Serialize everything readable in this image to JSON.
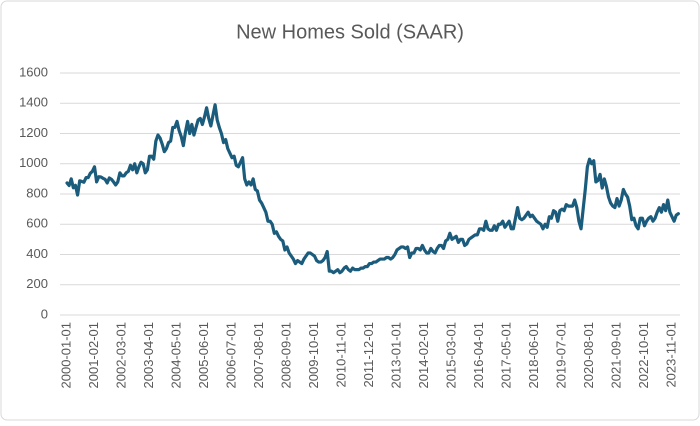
{
  "chart_data": {
    "type": "line",
    "title": "New Homes Sold (SAAR)",
    "color": "#1b5c7c",
    "grid": true,
    "ylim": [
      0,
      1600
    ],
    "yticks": [
      0,
      200,
      400,
      600,
      800,
      1000,
      1200,
      1400,
      1600
    ],
    "categories": [
      "2000-01-01",
      null,
      null,
      null,
      null,
      null,
      null,
      null,
      null,
      null,
      null,
      null,
      null,
      "2001-02-01",
      null,
      null,
      null,
      null,
      null,
      null,
      null,
      null,
      null,
      null,
      null,
      null,
      "2002-03-01",
      null,
      null,
      null,
      null,
      null,
      null,
      null,
      null,
      null,
      null,
      null,
      null,
      "2003-04-01",
      null,
      null,
      null,
      null,
      null,
      null,
      null,
      null,
      null,
      null,
      null,
      null,
      "2004-05-01",
      null,
      null,
      null,
      null,
      null,
      null,
      null,
      null,
      null,
      null,
      null,
      null,
      "2005-06-01",
      null,
      null,
      null,
      null,
      null,
      null,
      null,
      null,
      null,
      null,
      null,
      null,
      "2006-07-01",
      null,
      null,
      null,
      null,
      null,
      null,
      null,
      null,
      null,
      null,
      null,
      null,
      "2007-08-01",
      null,
      null,
      null,
      null,
      null,
      null,
      null,
      null,
      null,
      null,
      null,
      null,
      "2008-09-01",
      null,
      null,
      null,
      null,
      null,
      null,
      null,
      null,
      null,
      null,
      null,
      null,
      "2009-10-01",
      null,
      null,
      null,
      null,
      null,
      null,
      null,
      null,
      null,
      null,
      null,
      null,
      "2010-11-01",
      null,
      null,
      null,
      null,
      null,
      null,
      null,
      null,
      null,
      null,
      null,
      null,
      "2011-12-01",
      null,
      null,
      null,
      null,
      null,
      null,
      null,
      null,
      null,
      null,
      null,
      null,
      "2013-01-01",
      null,
      null,
      null,
      null,
      null,
      null,
      null,
      null,
      null,
      null,
      null,
      null,
      "2014-02-01",
      null,
      null,
      null,
      null,
      null,
      null,
      null,
      null,
      null,
      null,
      null,
      null,
      "2015-03-01",
      null,
      null,
      null,
      null,
      null,
      null,
      null,
      null,
      null,
      null,
      null,
      null,
      "2016-04-01",
      null,
      null,
      null,
      null,
      null,
      null,
      null,
      null,
      null,
      null,
      null,
      null,
      "2017-05-01",
      null,
      null,
      null,
      null,
      null,
      null,
      null,
      null,
      null,
      null,
      null,
      null,
      "2018-06-01",
      null,
      null,
      null,
      null,
      null,
      null,
      null,
      null,
      null,
      null,
      null,
      null,
      "2019-07-01",
      null,
      null,
      null,
      null,
      null,
      null,
      null,
      null,
      null,
      null,
      null,
      null,
      "2020-08-01",
      null,
      null,
      null,
      null,
      null,
      null,
      null,
      null,
      null,
      null,
      null,
      null,
      "2021-09-01",
      null,
      null,
      null,
      null,
      null,
      null,
      null,
      null,
      null,
      null,
      null,
      null,
      "2022-10-01",
      null,
      null,
      null,
      null,
      null,
      null,
      null,
      null,
      null,
      null,
      null,
      null,
      "2023-11-01",
      null,
      null,
      null
    ],
    "values": [
      873,
      856,
      900,
      841,
      857,
      793,
      887,
      883,
      878,
      908,
      908,
      937,
      950,
      980,
      880,
      914,
      913,
      904,
      897,
      873,
      906,
      897,
      880,
      860,
      880,
      940,
      920,
      920,
      940,
      950,
      990,
      960,
      1000,
      940,
      980,
      1010,
      1000,
      940,
      960,
      1050,
      1050,
      1030,
      1150,
      1190,
      1170,
      1130,
      1080,
      1100,
      1140,
      1150,
      1240,
      1240,
      1280,
      1220,
      1180,
      1120,
      1210,
      1280,
      1200,
      1260,
      1190,
      1240,
      1290,
      1300,
      1260,
      1310,
      1370,
      1300,
      1250,
      1320,
      1390,
      1290,
      1240,
      1200,
      1140,
      1160,
      1100,
      1070,
      1040,
      1050,
      990,
      980,
      1010,
      1040,
      900,
      860,
      880,
      860,
      900,
      830,
      820,
      760,
      740,
      710,
      680,
      620,
      620,
      600,
      540,
      550,
      520,
      500,
      490,
      430,
      450,
      410,
      390,
      370,
      340,
      360,
      350,
      340,
      370,
      390,
      410,
      410,
      400,
      390,
      360,
      350,
      350,
      360,
      380,
      420,
      290,
      290,
      280,
      290,
      300,
      280,
      290,
      310,
      320,
      300,
      290,
      310,
      300,
      300,
      300,
      310,
      310,
      320,
      320,
      340,
      340,
      350,
      350,
      360,
      370,
      370,
      370,
      380,
      380,
      370,
      380,
      400,
      430,
      440,
      450,
      450,
      440,
      450,
      380,
      410,
      410,
      440,
      440,
      430,
      460,
      430,
      410,
      410,
      440,
      420,
      410,
      440,
      460,
      460,
      440,
      490,
      500,
      540,
      500,
      510,
      520,
      480,
      500,
      500,
      460,
      470,
      500,
      510,
      520,
      530,
      530,
      570,
      570,
      560,
      620,
      570,
      560,
      560,
      590,
      560,
      600,
      600,
      620,
      580,
      600,
      620,
      570,
      570,
      640,
      710,
      640,
      630,
      640,
      660,
      680,
      650,
      660,
      640,
      620,
      610,
      600,
      570,
      600,
      580,
      650,
      640,
      690,
      680,
      620,
      690,
      700,
      690,
      730,
      720,
      720,
      720,
      760,
      710,
      620,
      570,
      700,
      830,
      980,
      1030,
      1000,
      1020,
      880,
      890,
      930,
      840,
      900,
      850,
      780,
      740,
      720,
      710,
      770,
      720,
      760,
      830,
      800,
      780,
      720,
      630,
      640,
      590,
      570,
      640,
      640,
      590,
      620,
      640,
      650,
      620,
      640,
      680,
      710,
      680,
      730,
      690,
      760,
      680,
      650,
      620,
      660,
      670
    ]
  }
}
